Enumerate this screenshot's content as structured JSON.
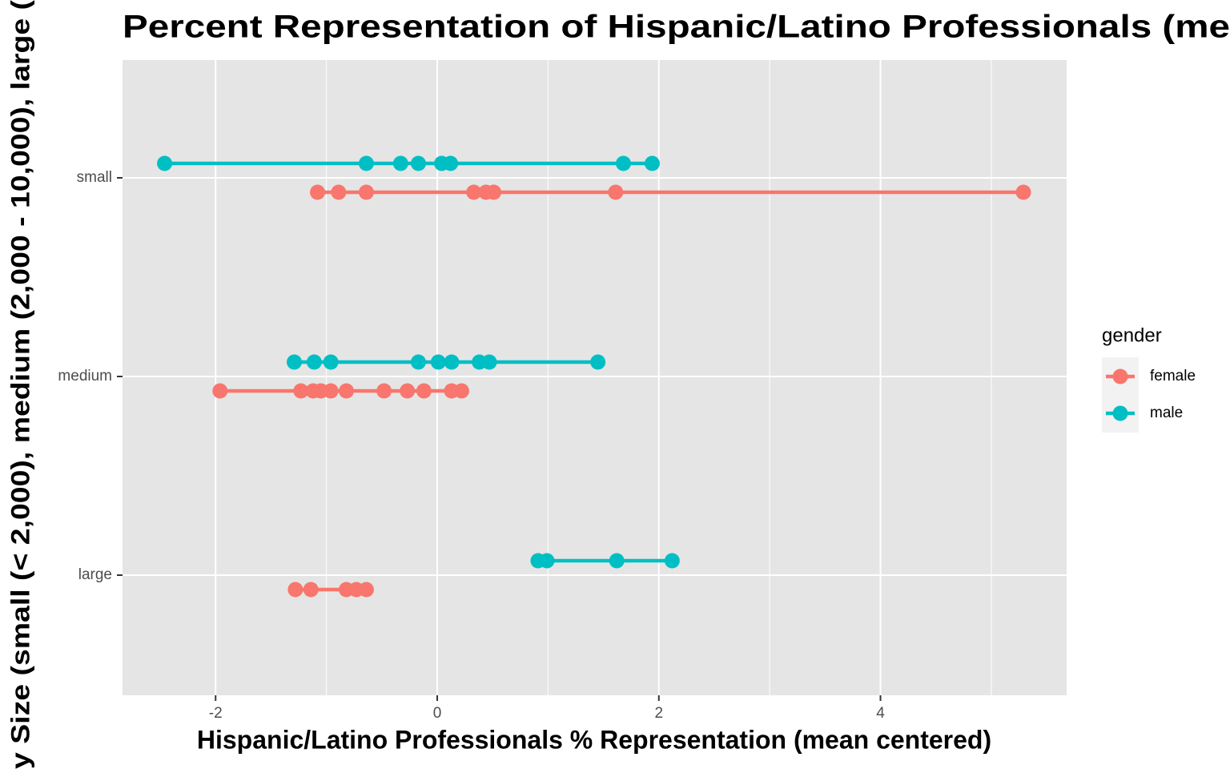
{
  "chart_data": {
    "type": "dot-line",
    "title": "Percent Representation of Hispanic/Latino Professionals (me",
    "x_label": "Hispanic/Latino Professionals % Representation (mean centered)",
    "y_label": "y Size (small (< 2,000), medium (2,000 - 10,000), large (",
    "categories": [
      "small",
      "medium",
      "large"
    ],
    "xlim": [
      -2.84,
      5.68
    ],
    "xticks": [
      -2,
      0,
      2,
      4
    ],
    "x_minor_grid": [
      -1,
      1,
      3,
      5
    ],
    "grid": true,
    "legend_title": "gender",
    "legend_position": "right",
    "series": [
      {
        "name": "female",
        "color": "#F8766D",
        "values": [
          [
            -1.08,
            -0.89,
            -0.64,
            0.33,
            0.44,
            0.51,
            1.61,
            5.29
          ],
          [
            -1.96,
            -1.23,
            -1.12,
            -1.05,
            -0.96,
            -0.82,
            -0.48,
            -0.27,
            -0.12,
            0.13,
            0.22
          ],
          [
            -1.28,
            -1.14,
            -0.82,
            -0.73,
            -0.64
          ]
        ]
      },
      {
        "name": "male",
        "color": "#00BFC4",
        "values": [
          [
            -2.46,
            -0.64,
            -0.33,
            -0.17,
            0.04,
            0.12,
            1.68,
            1.94
          ],
          [
            -1.29,
            -1.11,
            -0.96,
            -0.17,
            0.01,
            0.13,
            0.38,
            0.47,
            1.45
          ],
          [
            0.91,
            0.99,
            1.62,
            2.12
          ]
        ]
      }
    ]
  }
}
